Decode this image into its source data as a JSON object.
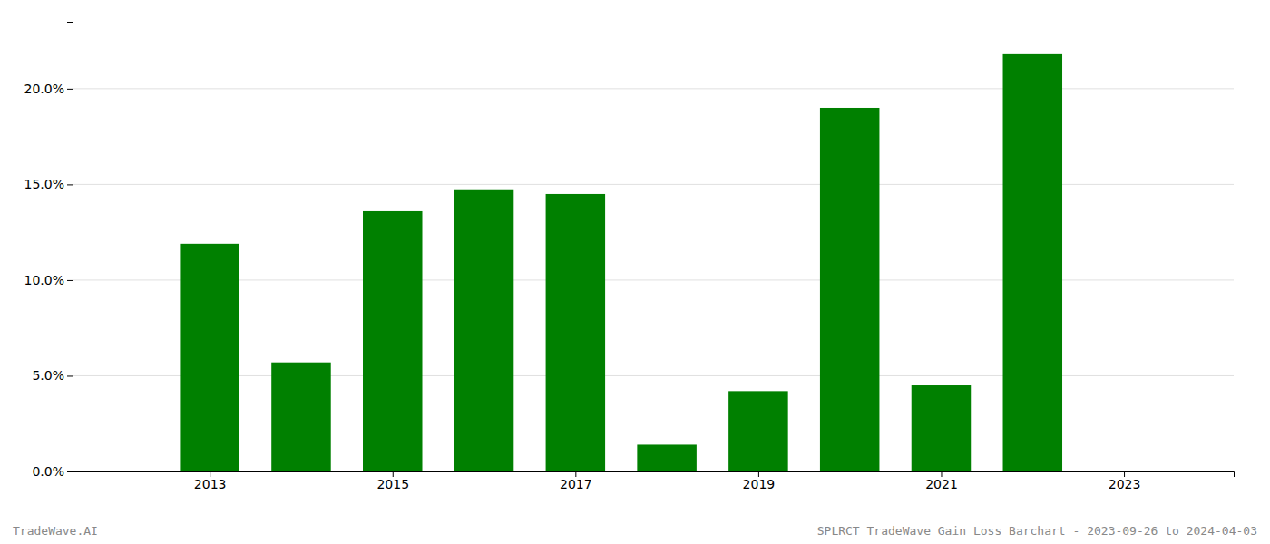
{
  "chart_data": {
    "type": "bar",
    "x": [
      2013,
      2014,
      2015,
      2016,
      2017,
      2018,
      2019,
      2020,
      2021,
      2022,
      2023
    ],
    "values": [
      0.119,
      0.057,
      0.136,
      0.147,
      0.145,
      0.014,
      0.042,
      0.19,
      0.045,
      0.218,
      null
    ],
    "color": "#008000",
    "xlim": [
      2011.5,
      2024.2
    ],
    "xticks": [
      2013,
      2015,
      2017,
      2019,
      2021,
      2023
    ],
    "ylim": [
      0,
      0.235
    ],
    "yticks": [
      {
        "value": 0.0,
        "label": "0.0%"
      },
      {
        "value": 0.05,
        "label": "5.0%"
      },
      {
        "value": 0.1,
        "label": "10.0%"
      },
      {
        "value": 0.15,
        "label": "15.0%"
      },
      {
        "value": 0.2,
        "label": "20.0%"
      }
    ],
    "grid": true,
    "annotations": [
      "TradeWave.AI",
      "SPLRCT TradeWave Gain Loss Barchart - 2023-09-26 to 2024-04-03"
    ]
  }
}
